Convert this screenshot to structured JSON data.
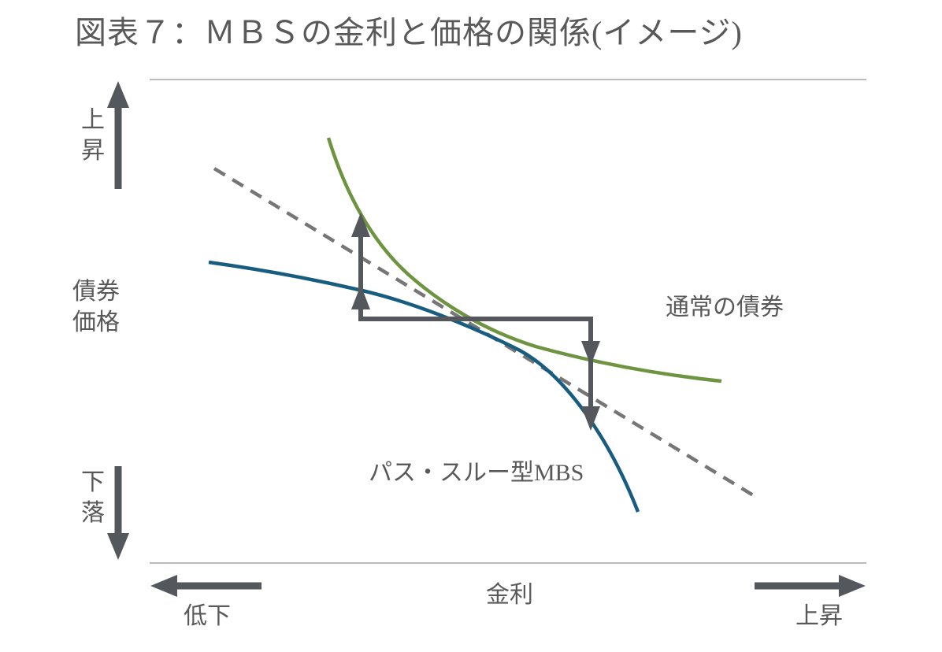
{
  "title": "図表７：ＭＢＳの金利と価格の関係(イメージ)",
  "y_axis": {
    "top_label_lines": [
      "上",
      "昇"
    ],
    "axis_label_lines": [
      "債券",
      "価格"
    ],
    "bottom_label_lines": [
      "下",
      "落"
    ]
  },
  "x_axis": {
    "label": "金利",
    "left_label": "低下",
    "right_label": "上昇"
  },
  "series": [
    {
      "name": "通常の債券",
      "color": "#6f9441"
    },
    {
      "name": "パス・スルー型MBS",
      "color": "#185d80"
    }
  ],
  "annotations": {
    "tangent_line_color": "#767676",
    "arrow_color": "#54575c"
  },
  "colors": {
    "text": "#595959",
    "frame": "#a3a3a3",
    "background": "#ffffff"
  }
}
